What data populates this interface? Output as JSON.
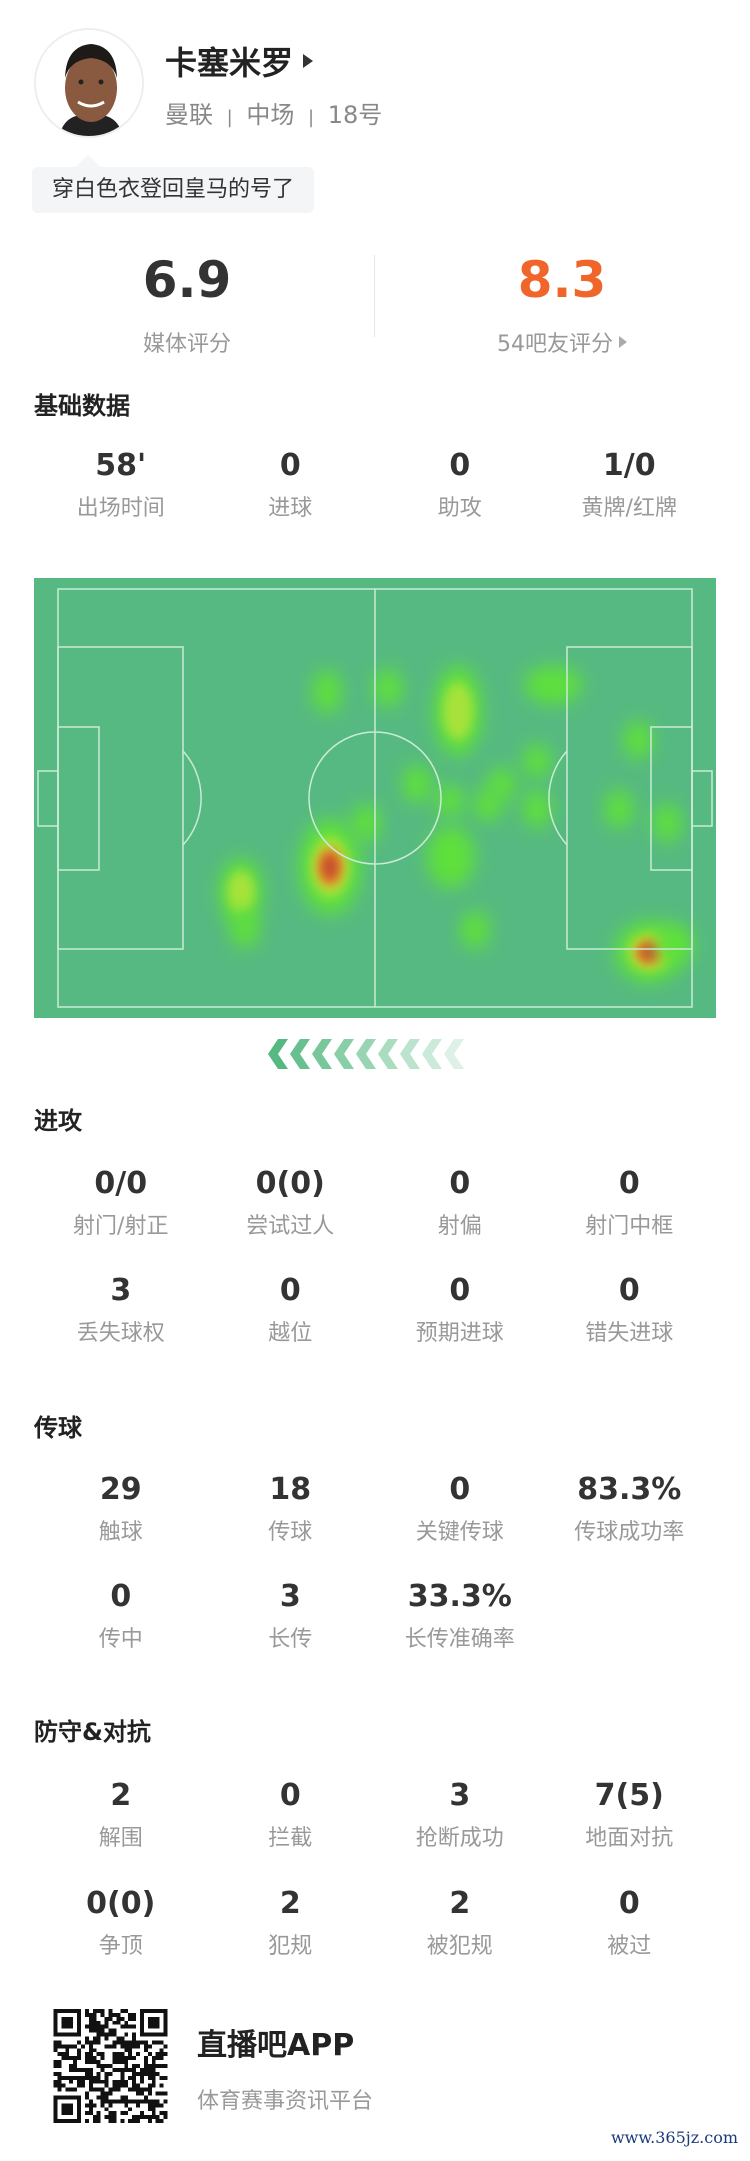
{
  "player": {
    "name": "卡塞米罗",
    "team": "曼联",
    "position": "中场",
    "number": "18号",
    "separator": "|",
    "comment": "穿白色衣登回皇马的号了"
  },
  "ratings": {
    "media": {
      "value": "6.9",
      "label": "媒体评分",
      "color": "#333333"
    },
    "fans": {
      "value": "8.3",
      "label": "54吧友评分",
      "color": "#f0652a"
    }
  },
  "basic": {
    "title": "基础数据",
    "items": [
      {
        "v": "58'",
        "l": "出场时间"
      },
      {
        "v": "0",
        "l": "进球"
      },
      {
        "v": "0",
        "l": "助攻"
      },
      {
        "v": "1/0",
        "l": "黄牌/红牌"
      }
    ]
  },
  "heatmap": {
    "pitch_color": "#56b981",
    "line_color": "#c9ead6",
    "direction": "attacking-left",
    "arrow_icon": "chevron-left-icon"
  },
  "attack": {
    "title": "进攻",
    "rows": [
      [
        {
          "v": "0/0",
          "l": "射门/射正"
        },
        {
          "v": "0(0)",
          "l": "尝试过人"
        },
        {
          "v": "0",
          "l": "射偏"
        },
        {
          "v": "0",
          "l": "射门中框"
        }
      ],
      [
        {
          "v": "3",
          "l": "丢失球权"
        },
        {
          "v": "0",
          "l": "越位"
        },
        {
          "v": "0",
          "l": "预期进球"
        },
        {
          "v": "0",
          "l": "错失进球"
        }
      ]
    ]
  },
  "passing": {
    "title": "传球",
    "rows": [
      [
        {
          "v": "29",
          "l": "触球"
        },
        {
          "v": "18",
          "l": "传球"
        },
        {
          "v": "0",
          "l": "关键传球"
        },
        {
          "v": "83.3%",
          "l": "传球成功率"
        }
      ],
      [
        {
          "v": "0",
          "l": "传中"
        },
        {
          "v": "3",
          "l": "长传"
        },
        {
          "v": "33.3%",
          "l": "长传准确率"
        }
      ]
    ]
  },
  "defense": {
    "title": "防守&对抗",
    "rows": [
      [
        {
          "v": "2",
          "l": "解围"
        },
        {
          "v": "0",
          "l": "拦截"
        },
        {
          "v": "3",
          "l": "抢断成功"
        },
        {
          "v": "7(5)",
          "l": "地面对抗"
        }
      ],
      [
        {
          "v": "0(0)",
          "l": "争顶"
        },
        {
          "v": "2",
          "l": "犯规"
        },
        {
          "v": "2",
          "l": "被犯规"
        },
        {
          "v": "0",
          "l": "被过"
        }
      ]
    ]
  },
  "footer": {
    "app_name": "直播吧APP",
    "tagline": "体育赛事资讯平台",
    "watermark": "www.365jz.com"
  }
}
